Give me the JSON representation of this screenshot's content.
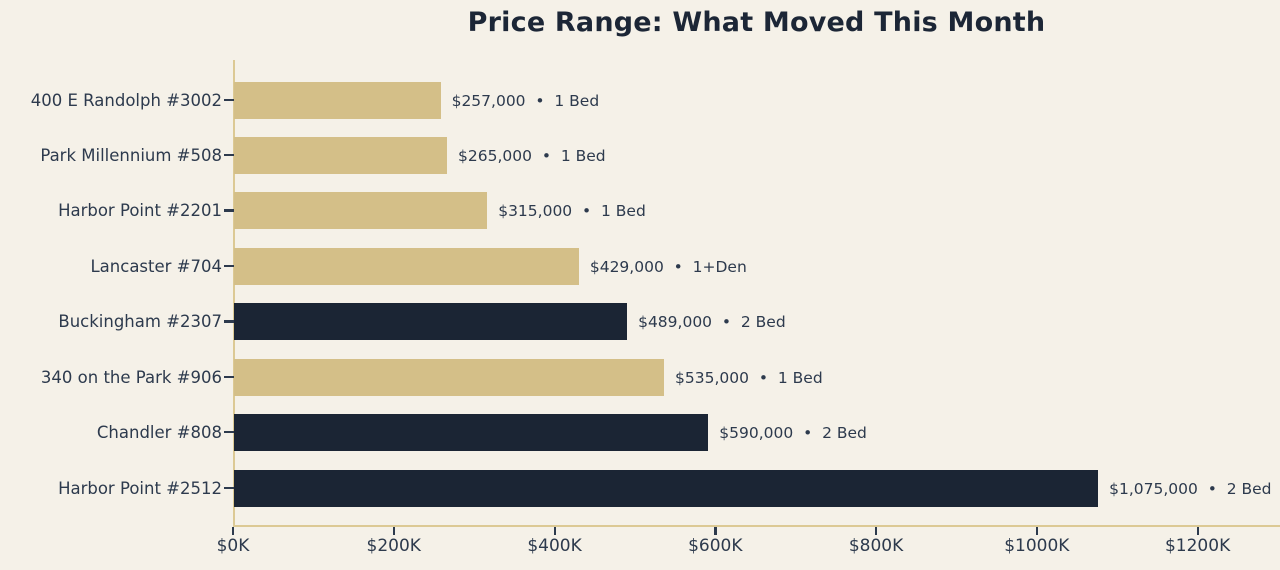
{
  "title": "Price Range: What Moved This Month",
  "chart_data": {
    "type": "bar",
    "orientation": "horizontal",
    "title": "Price Range: What Moved This Month",
    "categories": [
      "400 E Randolph #3002",
      "Park Millennium #508",
      "Harbor Point #2201",
      "Lancaster #704",
      "Buckingham #2307",
      "340 on the Park #906",
      "Chandler #808",
      "Harbor Point #2512"
    ],
    "values": [
      257000,
      265000,
      315000,
      429000,
      489000,
      535000,
      590000,
      1075000
    ],
    "price_labels": [
      "$257,000",
      "$265,000",
      "$315,000",
      "$429,000",
      "$489,000",
      "$535,000",
      "$590,000",
      "$1,075,000"
    ],
    "bed_labels": [
      "1 Bed",
      "1 Bed",
      "1 Bed",
      "1+Den",
      "2 Bed",
      "1 Bed",
      "2 Bed",
      "2 Bed"
    ],
    "separator": "•",
    "bar_color_keys": [
      "tan",
      "tan",
      "tan",
      "tan",
      "navy",
      "tan",
      "navy",
      "navy"
    ],
    "colors": {
      "tan": "#d4bf88",
      "navy": "#1b2534",
      "axis": "#dcc994",
      "background": "#f5f1e8",
      "title_text": "#1c2636",
      "label_text": "#2d3a4d",
      "tick_mark": "#2d3a4d"
    },
    "xlabel": "",
    "ylabel": "",
    "xlim": [
      0,
      1300000
    ],
    "x_ticks": [
      {
        "value": 0,
        "label": "$0K"
      },
      {
        "value": 200000,
        "label": "$200K"
      },
      {
        "value": 400000,
        "label": "$400K"
      },
      {
        "value": 600000,
        "label": "$600K"
      },
      {
        "value": 800000,
        "label": "$800K"
      },
      {
        "value": 1000000,
        "label": "$1000K"
      },
      {
        "value": 1200000,
        "label": "$1200K"
      }
    ],
    "grid": false,
    "legend": "none"
  }
}
